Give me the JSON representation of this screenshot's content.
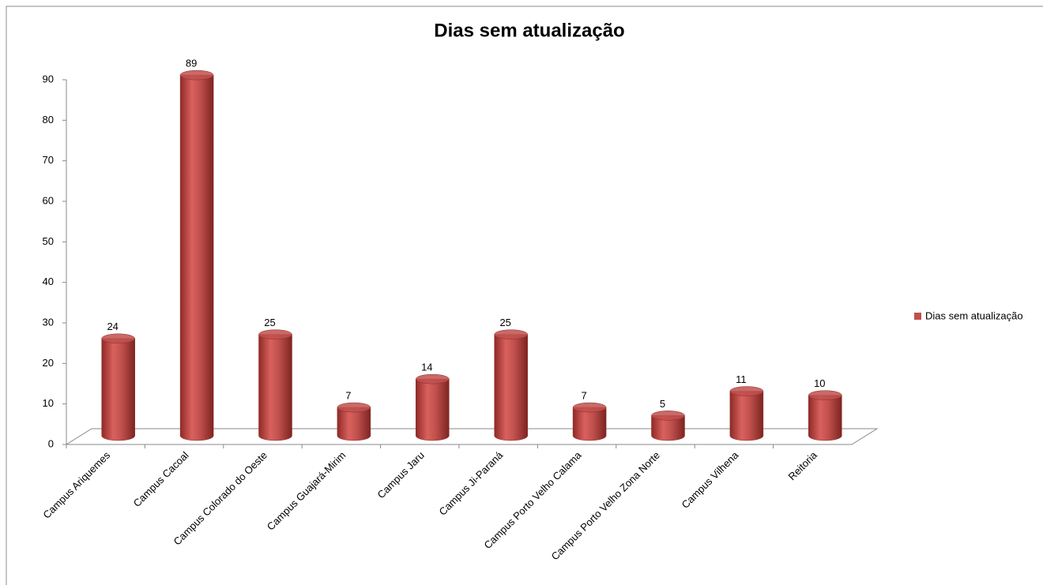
{
  "chart_data": {
    "type": "bar",
    "title": "Dias sem atualização",
    "categories": [
      "Campus Ariquemes",
      "Campus Cacoal",
      "Campus Colorado do Oeste",
      "Campus Guajará-Mirim",
      "Campus Jaru",
      "Campus Ji-Paraná",
      "Campus Porto Velho Calama",
      "Campus Porto Velho Zona Norte",
      "Campus Vilhena",
      "Reitoria"
    ],
    "series": [
      {
        "name": "Dias sem atualização",
        "color": "#c0504d",
        "values": [
          24,
          89,
          25,
          7,
          14,
          25,
          7,
          5,
          11,
          10
        ]
      }
    ],
    "ylim": [
      0,
      90
    ],
    "yticks": [
      0,
      10,
      20,
      30,
      40,
      50,
      60,
      70,
      80,
      90
    ],
    "grid": false,
    "legend": "right",
    "data_labels": true
  }
}
